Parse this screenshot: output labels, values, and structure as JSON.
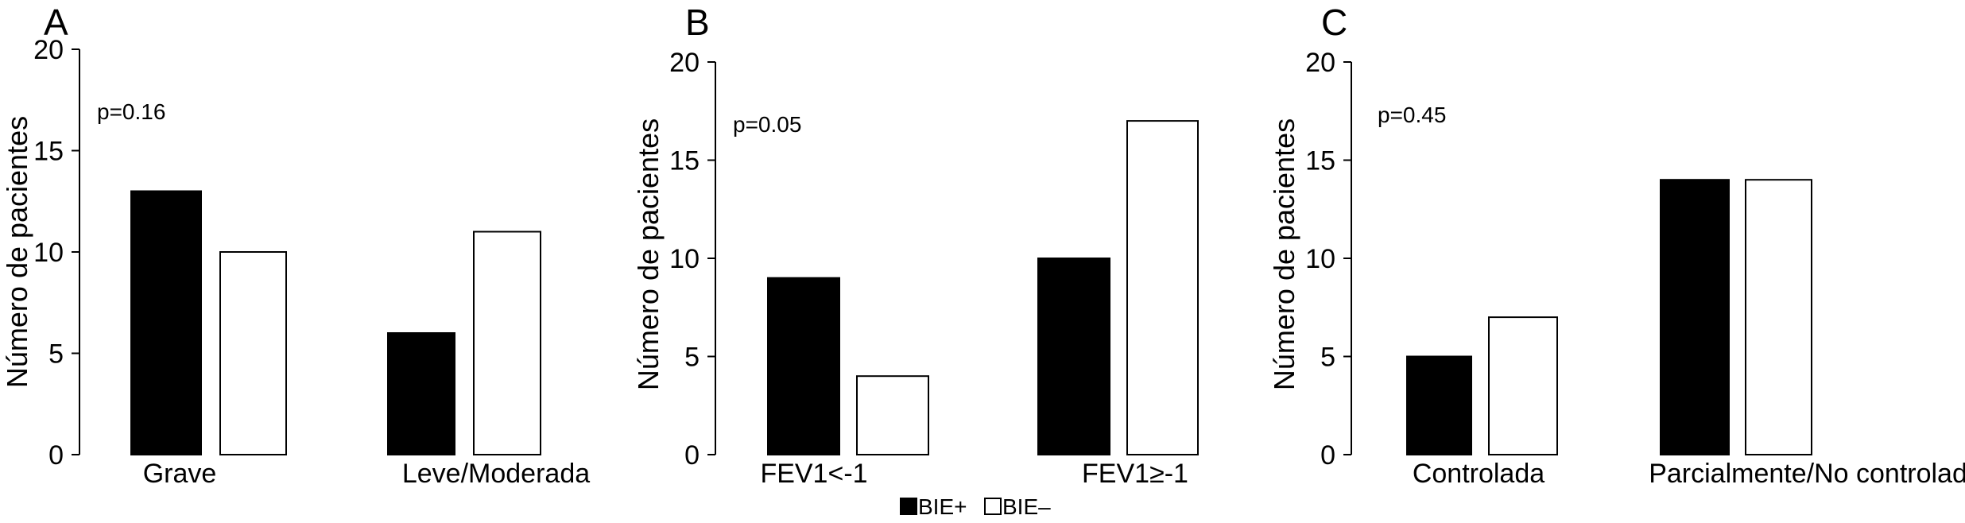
{
  "colors": {
    "bie_pos": "#000000",
    "bie_neg": "#ffffff",
    "stroke": "#000000"
  },
  "legend": {
    "items": [
      {
        "label": "BIE+",
        "color": "#000000"
      },
      {
        "label": "BIE–",
        "color": "#ffffff"
      }
    ]
  },
  "chart_data": [
    {
      "type": "bar",
      "panel": "A",
      "annotation": "p=0.16",
      "ylabel": "Número de pacientes",
      "ylim": [
        0,
        20
      ],
      "yticks": [
        "0",
        "5",
        "10",
        "15",
        "20"
      ],
      "categories": [
        "Grave",
        "Leve/Moderada"
      ],
      "series": [
        {
          "name": "BIE+",
          "values": [
            13,
            6
          ]
        },
        {
          "name": "BIE–",
          "values": [
            10,
            11
          ]
        }
      ]
    },
    {
      "type": "bar",
      "panel": "B",
      "annotation": "p=0.05",
      "ylabel": "Número de pacientes",
      "ylim": [
        0,
        20
      ],
      "yticks": [
        "0",
        "5",
        "10",
        "15",
        "20"
      ],
      "categories": [
        "FEV1<-1",
        "FEV1≥-1"
      ],
      "series": [
        {
          "name": "BIE+",
          "values": [
            9,
            10
          ]
        },
        {
          "name": "BIE–",
          "values": [
            4,
            17
          ]
        }
      ]
    },
    {
      "type": "bar",
      "panel": "C",
      "annotation": "p=0.45",
      "ylabel": "Número de pacientes",
      "ylim": [
        0,
        20
      ],
      "yticks": [
        "0",
        "5",
        "10",
        "15",
        "20"
      ],
      "categories": [
        "Controlada",
        "Parcialmente/No controlada"
      ],
      "series": [
        {
          "name": "BIE+",
          "values": [
            5,
            14
          ]
        },
        {
          "name": "BIE–",
          "values": [
            7,
            14
          ]
        }
      ]
    }
  ]
}
